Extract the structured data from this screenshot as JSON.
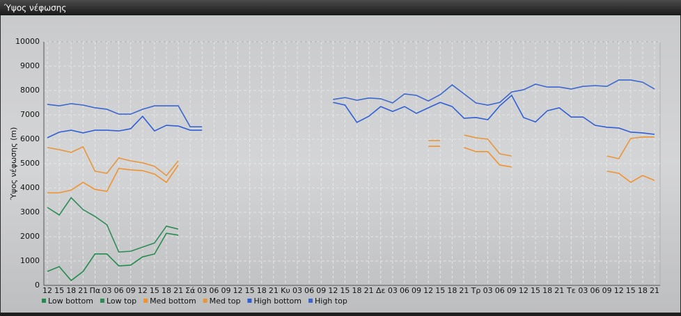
{
  "chart_data": {
    "type": "line",
    "title": "Ύψος νέφωσης",
    "y_label": "Ύψος νέφωσης (m)",
    "categories": [
      "12",
      "15",
      "18",
      "21",
      "Πα",
      "03",
      "06",
      "09",
      "12",
      "15",
      "18",
      "21",
      "Σά",
      "03",
      "06",
      "09",
      "12",
      "15",
      "18",
      "21",
      "Κυ",
      "03",
      "06",
      "09",
      "12",
      "15",
      "18",
      "21",
      "Δε",
      "03",
      "06",
      "09",
      "12",
      "15",
      "18",
      "21",
      "Τρ",
      "03",
      "06",
      "09",
      "12",
      "15",
      "18",
      "21",
      "Τε",
      "03",
      "06",
      "09",
      "12",
      "15",
      "18",
      "21"
    ],
    "ylim": [
      0,
      10000
    ],
    "yticks": [
      0,
      1000,
      2000,
      3000,
      4000,
      5000,
      6000,
      7000,
      8000,
      9000,
      10000
    ],
    "grid": true,
    "legend": "bottom",
    "series": [
      {
        "name": "Low bottom",
        "color": "#238b4e",
        "values": [
          570,
          770,
          200,
          570,
          1290,
          1290,
          800,
          830,
          1170,
          1290,
          2140,
          2060,
          null,
          null,
          null,
          null,
          null,
          null,
          null,
          null,
          null,
          null,
          null,
          null,
          null,
          null,
          null,
          null,
          null,
          null,
          null,
          null,
          null,
          null,
          null,
          null,
          null,
          null,
          null,
          null,
          null,
          null,
          null,
          null,
          null,
          null,
          null,
          null,
          null,
          null,
          null,
          null
        ]
      },
      {
        "name": "Low top",
        "color": "#2e8b57",
        "values": [
          3200,
          2890,
          3600,
          3110,
          2830,
          2490,
          1370,
          1400,
          1570,
          1740,
          2430,
          2310,
          null,
          null,
          null,
          null,
          null,
          null,
          null,
          null,
          null,
          null,
          null,
          null,
          null,
          null,
          null,
          null,
          null,
          null,
          null,
          null,
          null,
          null,
          null,
          null,
          null,
          null,
          null,
          null,
          null,
          null,
          null,
          null,
          null,
          null,
          null,
          null,
          null,
          null,
          null,
          null
        ]
      },
      {
        "name": "Med bottom",
        "color": "#f0922e",
        "values": [
          3800,
          3800,
          3910,
          4230,
          3940,
          3860,
          4800,
          4740,
          4710,
          4570,
          4230,
          4940,
          null,
          null,
          null,
          null,
          null,
          null,
          null,
          null,
          null,
          null,
          null,
          null,
          null,
          null,
          null,
          null,
          null,
          null,
          null,
          null,
          5710,
          5710,
          null,
          5660,
          5490,
          5490,
          4940,
          4860,
          null,
          null,
          null,
          null,
          null,
          null,
          null,
          4690,
          4600,
          4230,
          4510,
          4310
        ]
      },
      {
        "name": "Med top",
        "color": "#e8963c",
        "values": [
          5660,
          5570,
          5460,
          5690,
          4690,
          4600,
          5230,
          5110,
          5030,
          4890,
          4510,
          5110,
          null,
          null,
          null,
          null,
          null,
          null,
          null,
          null,
          null,
          null,
          null,
          null,
          null,
          null,
          null,
          null,
          null,
          null,
          null,
          null,
          5940,
          5940,
          null,
          6170,
          6060,
          6000,
          5400,
          5310,
          null,
          null,
          null,
          null,
          null,
          null,
          null,
          5310,
          5200,
          6030,
          6090,
          6090
        ]
      },
      {
        "name": "High bottom",
        "color": "#2f5fd6",
        "values": [
          6060,
          6290,
          6370,
          6260,
          6370,
          6370,
          6340,
          6430,
          6940,
          6340,
          6570,
          6540,
          6370,
          6370,
          null,
          null,
          null,
          null,
          null,
          null,
          null,
          null,
          null,
          null,
          7510,
          7400,
          6690,
          6940,
          7340,
          7140,
          7340,
          7060,
          7290,
          7510,
          7340,
          6860,
          6890,
          6800,
          7370,
          7800,
          6890,
          6710,
          7170,
          7290,
          6910,
          6910,
          6570,
          6490,
          6460,
          6290,
          6260,
          6200
        ]
      },
      {
        "name": "High top",
        "color": "#3b67cf",
        "values": [
          7430,
          7370,
          7460,
          7400,
          7290,
          7230,
          7030,
          7030,
          7230,
          7370,
          7370,
          7370,
          6510,
          6510,
          null,
          null,
          null,
          null,
          null,
          null,
          null,
          null,
          null,
          null,
          7630,
          7710,
          7600,
          7690,
          7660,
          7490,
          7860,
          7800,
          7570,
          7830,
          8230,
          7860,
          7490,
          7400,
          7510,
          7940,
          8030,
          8260,
          8140,
          8140,
          8060,
          8170,
          8200,
          8170,
          8430,
          8430,
          8340,
          8060
        ]
      }
    ]
  }
}
